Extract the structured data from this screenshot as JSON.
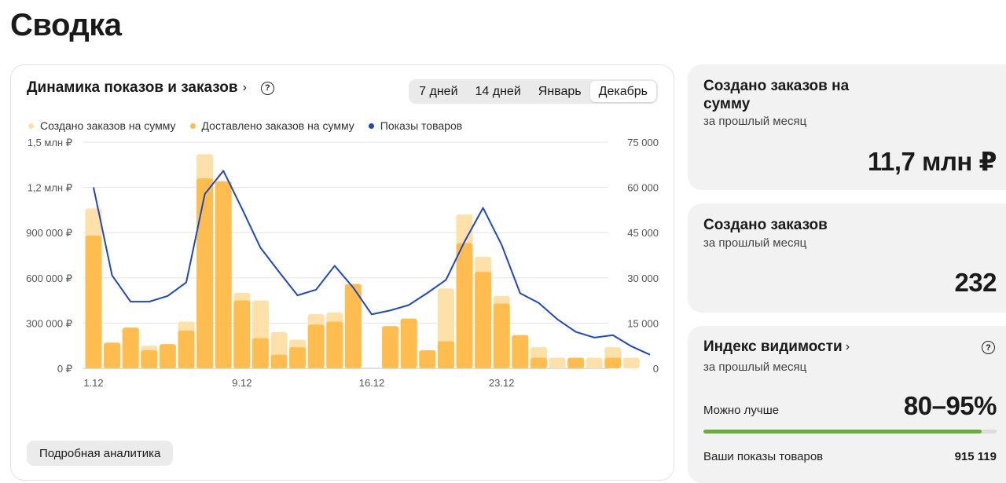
{
  "page": {
    "title": "Сводка"
  },
  "chart_card": {
    "title": "Динамика показов и заказов",
    "periods": [
      "7 дней",
      "14 дней",
      "Январь",
      "Декабрь"
    ],
    "active_period": "Декабрь",
    "analytics_button": "Подробная аналитика"
  },
  "chart_data": {
    "type": "bar",
    "x": [
      1,
      2,
      3,
      4,
      5,
      6,
      7,
      8,
      9,
      10,
      11,
      12,
      13,
      14,
      15,
      16,
      17,
      18,
      19,
      20,
      21,
      22,
      23,
      24,
      25,
      26,
      27,
      28,
      29,
      30,
      31
    ],
    "xticks": [
      "1.12",
      "9.12",
      "16.12",
      "23.12"
    ],
    "xtick_days": [
      1,
      9,
      16,
      23
    ],
    "series": [
      {
        "name": "Создано заказов на сумму",
        "axis": "left",
        "color": "#fde1a8",
        "values": [
          1060000,
          170000,
          270000,
          150000,
          160000,
          310000,
          1420000,
          1240000,
          500000,
          450000,
          240000,
          190000,
          360000,
          370000,
          560000,
          0,
          280000,
          330000,
          120000,
          530000,
          1020000,
          740000,
          480000,
          220000,
          140000,
          70000,
          70000,
          70000,
          140000,
          70000,
          null
        ]
      },
      {
        "name": "Доставлено заказов на сумму",
        "axis": "left",
        "color": "#ffbd4f",
        "values": [
          880000,
          170000,
          270000,
          120000,
          160000,
          250000,
          1260000,
          1240000,
          450000,
          200000,
          90000,
          140000,
          290000,
          310000,
          560000,
          0,
          280000,
          330000,
          120000,
          180000,
          830000,
          640000,
          430000,
          220000,
          70000,
          0,
          70000,
          0,
          70000,
          0,
          null
        ]
      },
      {
        "name": "Показы товаров",
        "axis": "right",
        "color": "#1d47c7",
        "values": [
          60000,
          30800,
          22100,
          22100,
          24000,
          28500,
          57800,
          65500,
          53000,
          40000,
          32000,
          24200,
          26100,
          34000,
          26800,
          17900,
          19200,
          21000,
          25000,
          29300,
          42000,
          53200,
          41000,
          24900,
          21700,
          16300,
          12100,
          10200,
          11000,
          7300,
          4500
        ]
      }
    ],
    "yticks_left": [
      "0 ₽",
      "300 000 ₽",
      "600 000 ₽",
      "900 000 ₽",
      "1,2 млн ₽",
      "1,5 млн ₽"
    ],
    "yticks_right": [
      "0",
      "15 000",
      "30 000",
      "45 000",
      "60 000",
      "75 000"
    ],
    "ylim_left": [
      0,
      1500000
    ],
    "ylim_right": [
      0,
      75000
    ],
    "grid": true,
    "legend": "top-left"
  },
  "orders_sum": {
    "title": "Создано заказов на сумму",
    "subtitle": "за прошлый месяц",
    "value": "11,7 млн ₽"
  },
  "orders_count": {
    "title": "Создано заказов",
    "subtitle": "за прошлый месяц",
    "value": "232"
  },
  "visibility": {
    "title": "Индекс видимости",
    "subtitle": "за прошлый месяц",
    "status": "Можно лучше",
    "value": "80–95%",
    "progress": 0.95,
    "progress_color": "#6aad3b",
    "views_label": "Ваши показы товаров",
    "views_value": "915 119"
  }
}
